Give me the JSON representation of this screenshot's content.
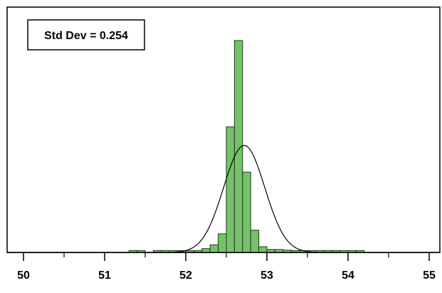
{
  "chart_data": {
    "type": "bar",
    "title": "",
    "xlabel": "",
    "ylabel": "",
    "annotation": "Std Dev = 0.254",
    "xlim": [
      50,
      55
    ],
    "x_ticks": [
      "50",
      "51",
      "52",
      "53",
      "54",
      "55"
    ],
    "minor_ticks": [
      50.5,
      51.5,
      52.5,
      53.5,
      54.5
    ],
    "ylim": [
      0,
      100
    ],
    "bin_width": 0.1,
    "bins": [
      {
        "x0": 51.3,
        "x1": 51.4,
        "value": 0.9
      },
      {
        "x0": 51.4,
        "x1": 51.5,
        "value": 0.9
      },
      {
        "x0": 51.6,
        "x1": 51.7,
        "value": 0.9
      },
      {
        "x0": 51.7,
        "x1": 51.8,
        "value": 0.9
      },
      {
        "x0": 51.8,
        "x1": 51.9,
        "value": 0.9
      },
      {
        "x0": 51.9,
        "x1": 52.0,
        "value": 0.9
      },
      {
        "x0": 52.0,
        "x1": 52.1,
        "value": 0.9
      },
      {
        "x0": 52.1,
        "x1": 52.2,
        "value": 0.9
      },
      {
        "x0": 52.2,
        "x1": 52.3,
        "value": 1.8
      },
      {
        "x0": 52.3,
        "x1": 52.4,
        "value": 3.6
      },
      {
        "x0": 52.4,
        "x1": 52.5,
        "value": 8.8
      },
      {
        "x0": 52.5,
        "x1": 52.6,
        "value": 59.3
      },
      {
        "x0": 52.6,
        "x1": 52.7,
        "value": 100
      },
      {
        "x0": 52.7,
        "x1": 52.8,
        "value": 37.9
      },
      {
        "x0": 52.8,
        "x1": 52.9,
        "value": 10.5
      },
      {
        "x0": 52.9,
        "x1": 53.0,
        "value": 2.7
      },
      {
        "x0": 53.0,
        "x1": 53.1,
        "value": 1.4
      },
      {
        "x0": 53.1,
        "x1": 53.2,
        "value": 1.4
      },
      {
        "x0": 53.2,
        "x1": 53.3,
        "value": 1.1
      },
      {
        "x0": 53.3,
        "x1": 53.4,
        "value": 0.9
      },
      {
        "x0": 53.4,
        "x1": 53.5,
        "value": 0.9
      },
      {
        "x0": 53.5,
        "x1": 53.6,
        "value": 0.9
      },
      {
        "x0": 53.6,
        "x1": 53.7,
        "value": 0.9
      },
      {
        "x0": 53.7,
        "x1": 53.8,
        "value": 0.9
      },
      {
        "x0": 53.8,
        "x1": 53.9,
        "value": 0.9
      },
      {
        "x0": 53.9,
        "x1": 54.0,
        "value": 0.9
      },
      {
        "x0": 54.0,
        "x1": 54.1,
        "value": 0.9
      },
      {
        "x0": 54.1,
        "x1": 54.2,
        "value": 0.9
      }
    ],
    "normal_curve": {
      "mean": 52.72,
      "std_dev": 0.254,
      "peak": 50.5
    },
    "bar_color": "#77c16d",
    "bar_stroke": "#1a3a14",
    "curve_color": "#000000",
    "grid": false
  }
}
